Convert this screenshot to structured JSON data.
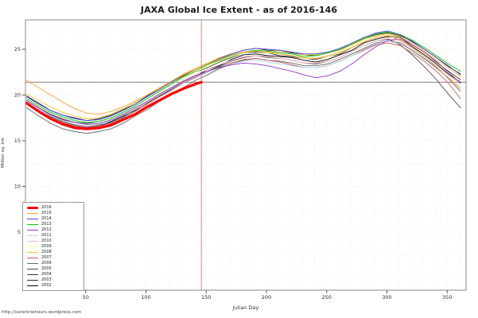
{
  "title": "JAXA Global Ice Extent - as of 2016-146",
  "footer": {
    "url": "http://sunshinehours.wordpress.com"
  },
  "chart_data": {
    "type": "line",
    "title": "JAXA Global Ice Extent - as of 2016-146",
    "xlabel": "Julian Day",
    "ylabel": "Million sq. km",
    "xlim": [
      0,
      366
    ],
    "ylim": [
      -1.3,
      28.2
    ],
    "x_ticks": [
      50,
      100,
      150,
      200,
      250,
      300,
      350
    ],
    "y_ticks": [
      5,
      10,
      15,
      20,
      25
    ],
    "grid": true,
    "grid_x_step": 10,
    "grid_y_step": 2.5,
    "legend_position": "bottom-left",
    "reference_lines": {
      "horizontal": {
        "value": 21.4,
        "color": "#808080"
      },
      "vertical": {
        "value": 146,
        "color": "#f08080"
      }
    },
    "x_days": [
      1,
      11,
      21,
      31,
      41,
      51,
      61,
      71,
      81,
      91,
      101,
      111,
      121,
      131,
      141,
      151,
      161,
      171,
      181,
      191,
      201,
      211,
      221,
      231,
      241,
      251,
      261,
      271,
      281,
      291,
      301,
      311,
      321,
      331,
      341,
      351,
      361
    ],
    "series": [
      {
        "name": "2002",
        "color": "#000000",
        "width": 0.9,
        "values": [
          19.0,
          18.1,
          17.4,
          16.9,
          16.6,
          16.4,
          16.6,
          17.1,
          17.7,
          18.3,
          19.2,
          19.8,
          20.7,
          21.5,
          22.0,
          22.8,
          23.2,
          23.9,
          24.4,
          24.5,
          24.3,
          24.2,
          24.1,
          23.8,
          23.6,
          23.9,
          24.4,
          24.9,
          25.7,
          26.1,
          26.4,
          26.2,
          25.3,
          24.4,
          23.4,
          22.3,
          21.4
        ]
      },
      {
        "name": "2003",
        "color": "#262626",
        "width": 0.9,
        "values": [
          19.9,
          19.1,
          18.3,
          17.8,
          17.5,
          17.2,
          17.4,
          17.8,
          18.4,
          19.0,
          19.9,
          20.6,
          21.4,
          22.1,
          22.8,
          23.4,
          23.9,
          24.5,
          24.9,
          25.1,
          24.9,
          24.8,
          24.6,
          24.4,
          24.3,
          24.6,
          25.0,
          25.5,
          26.2,
          26.6,
          26.8,
          26.5,
          25.9,
          25.0,
          24.1,
          23.1,
          22.3
        ]
      },
      {
        "name": "2004",
        "color": "#383838",
        "width": 0.9,
        "values": [
          19.4,
          18.6,
          17.8,
          17.3,
          17.0,
          16.9,
          17.1,
          17.5,
          18.1,
          18.8,
          19.6,
          20.4,
          21.1,
          21.9,
          22.5,
          23.0,
          23.6,
          24.1,
          24.6,
          24.7,
          24.6,
          24.3,
          24.2,
          24.0,
          23.9,
          24.2,
          24.5,
          25.2,
          25.8,
          26.3,
          26.5,
          26.3,
          25.5,
          24.6,
          23.6,
          22.6,
          21.7
        ]
      },
      {
        "name": "2005",
        "color": "#4a4a4a",
        "width": 0.9,
        "values": [
          19.2,
          18.3,
          17.6,
          17.1,
          16.7,
          16.5,
          16.7,
          17.0,
          17.6,
          18.4,
          19.1,
          19.9,
          20.6,
          21.4,
          22.0,
          22.6,
          23.1,
          23.7,
          24.1,
          24.3,
          24.1,
          24.0,
          23.8,
          23.5,
          23.4,
          23.7,
          24.1,
          24.8,
          25.4,
          25.9,
          26.1,
          25.5,
          24.4,
          23.1,
          21.7,
          20.1,
          18.6
        ]
      },
      {
        "name": "2006",
        "color": "#666666",
        "width": 0.9,
        "values": [
          18.6,
          17.7,
          16.9,
          16.3,
          16.0,
          15.8,
          16.0,
          16.3,
          16.9,
          17.7,
          18.4,
          19.3,
          20.1,
          20.8,
          21.6,
          22.2,
          22.9,
          23.4,
          23.8,
          24.0,
          23.8,
          23.7,
          23.5,
          23.2,
          23.2,
          23.4,
          23.9,
          24.5,
          25.1,
          25.7,
          25.9,
          25.7,
          24.9,
          24.0,
          23.0,
          21.8,
          20.4
        ]
      },
      {
        "name": "2007",
        "color": "#cd5c5c",
        "width": 0.9,
        "values": [
          19.1,
          18.3,
          17.5,
          17.0,
          16.6,
          16.4,
          16.6,
          16.9,
          17.5,
          18.2,
          19.0,
          19.8,
          20.5,
          21.3,
          21.9,
          22.5,
          23.0,
          23.5,
          23.9,
          24.0,
          23.8,
          23.6,
          23.3,
          23.0,
          23.0,
          23.2,
          23.7,
          24.3,
          24.9,
          25.5,
          25.7,
          25.4,
          24.6,
          23.7,
          22.6,
          21.3,
          19.6
        ]
      },
      {
        "name": "2008",
        "color": "#ffc125",
        "width": 0.9,
        "values": [
          20.1,
          19.4,
          18.7,
          18.1,
          17.7,
          17.4,
          17.5,
          17.9,
          18.5,
          19.2,
          20.0,
          20.8,
          21.5,
          22.3,
          22.9,
          23.5,
          24.1,
          24.5,
          24.9,
          25.1,
          25.0,
          24.8,
          24.7,
          24.4,
          24.4,
          24.6,
          24.9,
          25.5,
          26.1,
          26.5,
          26.7,
          26.4,
          25.7,
          24.8,
          23.9,
          23.0,
          22.0
        ]
      },
      {
        "name": "2009",
        "color": "#ffff99",
        "width": 0.9,
        "values": [
          19.6,
          18.8,
          18.1,
          17.6,
          17.2,
          17.0,
          17.1,
          17.5,
          18.1,
          18.8,
          19.6,
          20.3,
          21.1,
          21.9,
          22.5,
          23.1,
          23.7,
          24.2,
          24.6,
          24.8,
          24.6,
          24.5,
          24.3,
          24.0,
          24.0,
          24.2,
          24.6,
          25.2,
          25.9,
          26.3,
          26.5,
          26.2,
          25.4,
          24.6,
          23.5,
          22.5,
          21.5
        ]
      },
      {
        "name": "2010",
        "color": "#ffb6c1",
        "width": 0.9,
        "values": [
          19.3,
          18.5,
          17.7,
          17.2,
          16.8,
          16.6,
          16.8,
          17.2,
          17.8,
          18.4,
          19.2,
          20.0,
          20.8,
          21.6,
          22.2,
          22.8,
          23.3,
          23.8,
          24.2,
          24.3,
          24.2,
          24.0,
          23.8,
          23.5,
          23.5,
          23.7,
          24.1,
          24.8,
          25.4,
          25.9,
          26.2,
          25.9,
          25.1,
          24.2,
          23.2,
          22.2,
          21.2
        ]
      },
      {
        "name": "2011",
        "color": "#add8e6",
        "width": 0.9,
        "values": [
          19.2,
          18.4,
          17.7,
          17.2,
          16.8,
          16.7,
          16.8,
          17.2,
          17.8,
          18.5,
          19.3,
          20.0,
          20.7,
          21.4,
          22.0,
          22.5,
          23.0,
          23.4,
          23.7,
          23.8,
          23.6,
          23.4,
          23.2,
          23.0,
          23.0,
          23.2,
          23.7,
          24.3,
          25.0,
          25.6,
          25.9,
          25.6,
          24.8,
          23.9,
          22.9,
          21.9,
          20.9
        ]
      },
      {
        "name": "2012",
        "color": "#9933cc",
        "width": 0.9,
        "values": [
          19.4,
          18.6,
          17.9,
          17.4,
          17.0,
          16.8,
          16.9,
          17.3,
          17.9,
          18.6,
          19.3,
          20.1,
          20.8,
          21.5,
          22.1,
          22.6,
          23.0,
          23.3,
          23.5,
          23.4,
          23.2,
          22.9,
          22.6,
          22.2,
          21.9,
          22.1,
          22.6,
          23.4,
          24.4,
          25.3,
          26.0,
          26.1,
          25.5,
          24.7,
          23.7,
          22.5,
          21.3
        ]
      },
      {
        "name": "2013",
        "color": "#00cc00",
        "width": 0.9,
        "values": [
          19.6,
          18.8,
          18.1,
          17.6,
          17.2,
          17.0,
          17.1,
          17.5,
          18.1,
          18.8,
          19.6,
          20.4,
          21.2,
          22.0,
          22.6,
          23.3,
          23.8,
          24.3,
          24.7,
          24.9,
          24.8,
          24.6,
          24.5,
          24.2,
          24.3,
          24.6,
          25.0,
          25.6,
          26.2,
          26.7,
          26.9,
          26.6,
          26.0,
          25.2,
          24.3,
          23.4,
          22.6
        ]
      },
      {
        "name": "2014",
        "color": "#4444ee",
        "width": 0.9,
        "values": [
          19.8,
          19.0,
          18.3,
          17.8,
          17.4,
          17.2,
          17.3,
          17.7,
          18.3,
          19.0,
          19.8,
          20.6,
          21.4,
          22.2,
          22.8,
          23.4,
          24.0,
          24.5,
          24.9,
          25.1,
          25.0,
          24.9,
          24.7,
          24.5,
          24.5,
          24.7,
          25.1,
          25.7,
          26.3,
          26.8,
          27.0,
          26.6,
          25.8,
          25.0,
          24.1,
          23.2,
          22.2
        ]
      },
      {
        "name": "2015",
        "color": "#ffa033",
        "width": 0.9,
        "values": [
          21.6,
          20.8,
          20.0,
          19.2,
          18.5,
          18.0,
          17.9,
          18.2,
          18.7,
          19.3,
          20.0,
          20.7,
          21.5,
          22.2,
          22.8,
          23.4,
          23.9,
          24.4,
          24.7,
          24.8,
          24.7,
          24.5,
          24.3,
          24.1,
          24.0,
          24.3,
          24.7,
          25.2,
          25.8,
          26.3,
          26.5,
          26.0,
          25.2,
          24.2,
          23.1,
          21.9,
          20.7
        ]
      },
      {
        "name": "2016",
        "color": "#ff0000",
        "width": 3.2,
        "days": [
          1,
          11,
          21,
          31,
          41,
          51,
          61,
          71,
          81,
          91,
          101,
          111,
          121,
          131,
          141,
          146
        ],
        "values": [
          19.1,
          18.2,
          17.4,
          16.8,
          16.4,
          16.3,
          16.4,
          16.7,
          17.3,
          17.9,
          18.7,
          19.4,
          20.1,
          20.7,
          21.2,
          21.4
        ]
      }
    ]
  }
}
